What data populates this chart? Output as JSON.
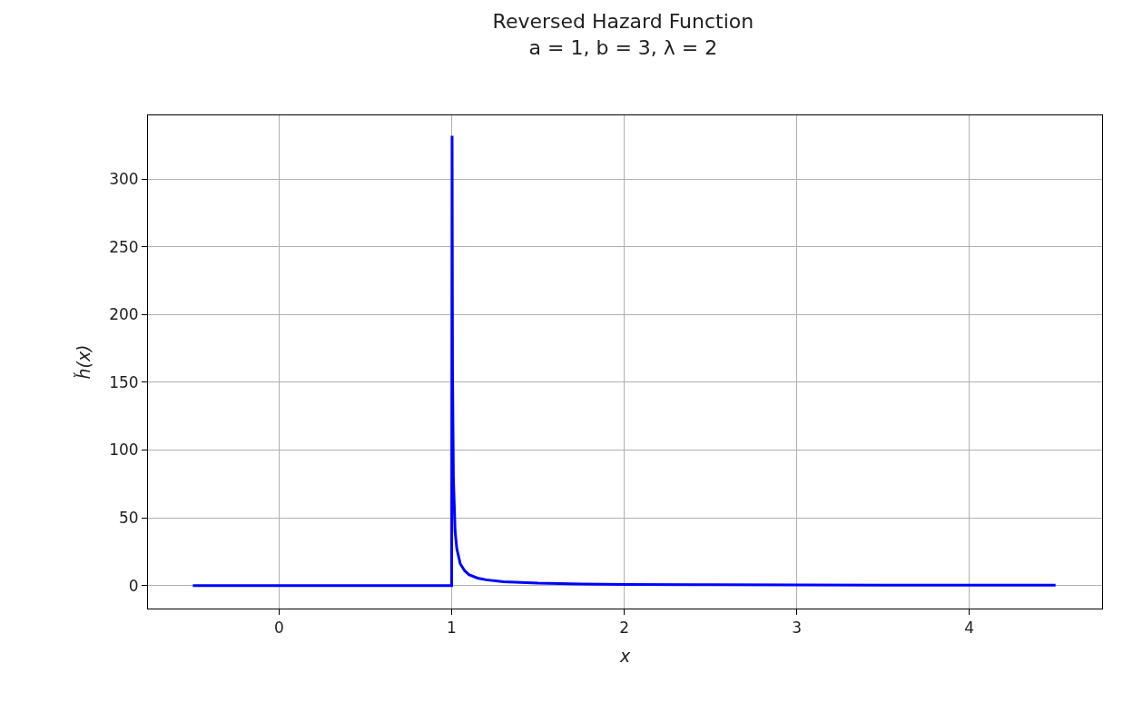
{
  "chart_data": {
    "type": "line",
    "title": "Reversed Hazard Function",
    "subtitle": "a = 1, b = 3, λ = 2",
    "xlabel": "x",
    "ylabel": "ȟ(x)",
    "x": [
      -0.5,
      1.0,
      1.0025,
      1.005,
      1.01,
      1.02,
      1.03,
      1.05,
      1.075,
      1.1,
      1.15,
      1.2,
      1.3,
      1.5,
      1.75,
      2.0,
      2.5,
      3.0,
      3.5,
      4.0,
      4.5
    ],
    "series": [
      {
        "color": "#0000ff",
        "values": [
          0,
          0,
          332,
          160,
          80,
          40,
          27,
          16,
          11,
          8,
          5.5,
          4.2,
          2.8,
          1.7,
          1.1,
          0.8,
          0.6,
          0.4,
          0.3,
          0.3,
          0.2
        ]
      }
    ],
    "xlim": [
      -0.76,
      4.77
    ],
    "xticks": [
      0,
      1,
      2,
      3,
      4
    ],
    "ylim": [
      -17,
      347
    ],
    "yticks": [
      0,
      50,
      100,
      150,
      200,
      250,
      300
    ],
    "grid": true
  }
}
